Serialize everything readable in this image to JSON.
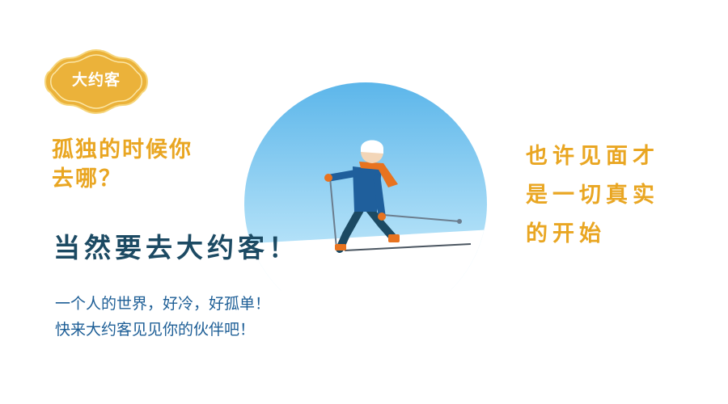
{
  "badge": {
    "label": "大约客"
  },
  "question": {
    "line1": "孤独的时候你",
    "line2": "去哪？"
  },
  "headline": "当然要去大约客！",
  "body": {
    "line1": "一个人的世界，好冷，好孤单！",
    "line2": "快来大约客见见你的伙伴吧！"
  },
  "tagline": {
    "line1": "也许见面才",
    "line2": "是一切真实",
    "line3": "的开始"
  },
  "colors": {
    "gold": "#e9a622",
    "navy": "#1c4a63",
    "blue_text": "#1d5e96",
    "sky": "#8fd0f2",
    "scarf": "#e8731f",
    "jacket": "#1f5f9c"
  },
  "illustration": {
    "subject": "skier-illustration"
  }
}
